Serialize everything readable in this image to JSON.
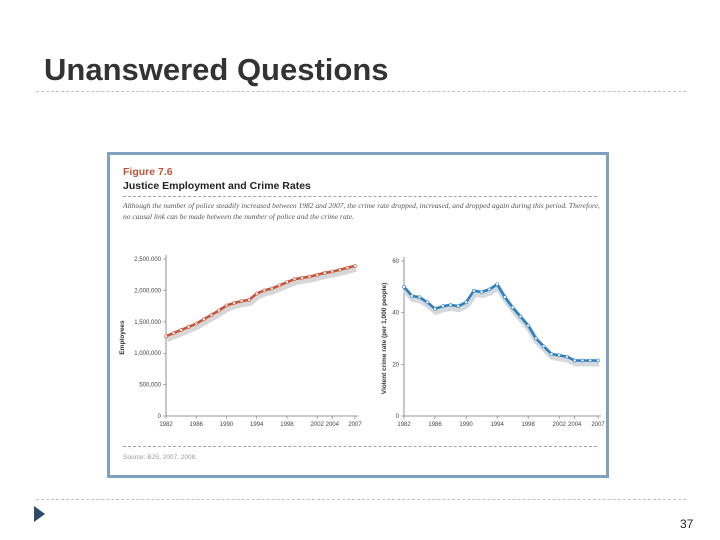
{
  "slide": {
    "title": "Unanswered Questions",
    "page_number": "37"
  },
  "figure": {
    "number": "Figure 7.6",
    "title": "Justice Employment and Crime Rates",
    "caption": "Although the number of police steadily increased between 1982 and 2007, the crime rate dropped, increased, and dropped again during this period. Therefore, no causal link can be made between the number of police and the crime rate.",
    "source": "Source: BJS, 2007, 2008."
  },
  "colors": {
    "employees_line": "#c8553a",
    "employees_shadow": "#d7d7d7",
    "crime_line": "#2f7fc0",
    "crime_shadow": "#d4d9de",
    "frame": "#7fa1c0"
  },
  "chart_data": [
    {
      "type": "line",
      "xlabel": "",
      "ylabel": "Employees",
      "x_ticks": [
        "1982",
        "1986",
        "1990",
        "1994",
        "1998",
        "2002",
        "2004",
        "2007"
      ],
      "y_ticks": [
        "0",
        "500,000",
        "1,000,000",
        "1,500,000",
        "2,000,000",
        "2,500,000"
      ],
      "xlim": [
        1982,
        2007
      ],
      "ylim": [
        0,
        2500000
      ],
      "grid": false,
      "series": [
        {
          "x": [
            1982,
            1983,
            1984,
            1985,
            1986,
            1987,
            1988,
            1989,
            1990,
            1991,
            1992,
            1993,
            1994,
            1995,
            1996,
            1997,
            1998,
            1999,
            2000,
            2001,
            2002,
            2003,
            2004,
            2005,
            2006,
            2007
          ],
          "values": [
            1270000,
            1320000,
            1370000,
            1420000,
            1470000,
            1540000,
            1610000,
            1680000,
            1760000,
            1800000,
            1830000,
            1850000,
            1950000,
            2000000,
            2030000,
            2080000,
            2130000,
            2180000,
            2200000,
            2220000,
            2250000,
            2280000,
            2300000,
            2330000,
            2360000,
            2390000
          ]
        }
      ]
    },
    {
      "type": "line",
      "xlabel": "",
      "ylabel": "Violent crime rate (per 1,000 people)",
      "x_ticks": [
        "1982",
        "1986",
        "1990",
        "1994",
        "1998",
        "2002",
        "2004",
        "2007"
      ],
      "y_ticks": [
        "0",
        "20",
        "40",
        "60"
      ],
      "xlim": [
        1982,
        2007
      ],
      "ylim": [
        0,
        60
      ],
      "grid": false,
      "series": [
        {
          "x": [
            1982,
            1983,
            1984,
            1985,
            1986,
            1987,
            1988,
            1989,
            1990,
            1991,
            1992,
            1993,
            1994,
            1995,
            1996,
            1997,
            1998,
            1999,
            2000,
            2001,
            2002,
            2003,
            2004,
            2005,
            2006,
            2007
          ],
          "values": [
            50,
            46.5,
            46,
            44,
            41.5,
            42.5,
            43,
            42.5,
            44,
            48.5,
            48,
            49,
            51,
            46,
            42,
            38.5,
            35,
            30,
            27,
            24,
            23.5,
            23,
            21.5,
            21.5,
            21.5,
            21.5
          ]
        }
      ]
    }
  ]
}
